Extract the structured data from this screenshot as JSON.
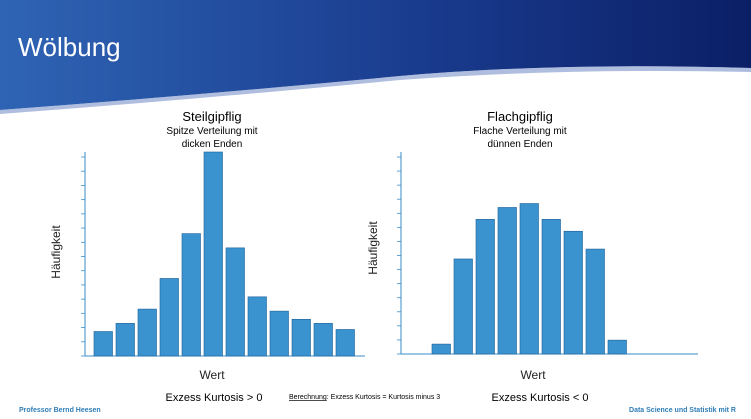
{
  "slide": {
    "title": "Wölbung",
    "footer_left": "Professor Bernd Heesen",
    "footer_right": "Data Science und Statistik mit R",
    "formula_label": "Berechnung",
    "formula_text": ": Exzess Kurtosis = Kurtosis minus 3",
    "colors": {
      "header": "#0f2a78",
      "bar": "#3a93cf",
      "bar_edge": "#1c5f9a",
      "axis": "#3a8ec8",
      "footer": "#2e7db7"
    }
  },
  "chart_data": [
    {
      "type": "bar",
      "title": "Steilgipflig",
      "subtitle": [
        "Spitze Verteilung mit",
        "dicken Enden"
      ],
      "xlabel": "Wert",
      "ylabel": "Häufigkeit",
      "caption": "Exzess Kurtosis > 0",
      "values": [
        12,
        16,
        23,
        38,
        60,
        100,
        53,
        29,
        22,
        18,
        16,
        13
      ],
      "ylim": [
        0,
        100
      ],
      "grid": false
    },
    {
      "type": "bar",
      "title": "Flachgipflig",
      "subtitle": [
        "Flache Verteilung mit",
        "dünnen Enden"
      ],
      "xlabel": "Wert",
      "ylabel": "Häufigkeit",
      "caption": "Exzess Kurtosis < 0",
      "values": [
        5,
        48,
        68,
        74,
        76,
        68,
        62,
        53,
        7
      ],
      "ylim": [
        0,
        100
      ],
      "grid": false
    }
  ]
}
